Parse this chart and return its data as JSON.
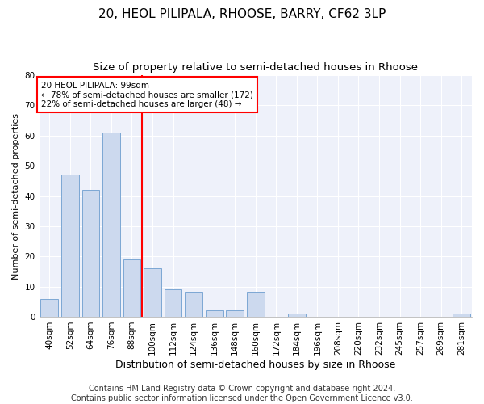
{
  "title1": "20, HEOL PILIPALA, RHOOSE, BARRY, CF62 3LP",
  "title2": "Size of property relative to semi-detached houses in Rhoose",
  "xlabel": "Distribution of semi-detached houses by size in Rhoose",
  "ylabel": "Number of semi-detached properties",
  "categories": [
    "40sqm",
    "52sqm",
    "64sqm",
    "76sqm",
    "88sqm",
    "100sqm",
    "112sqm",
    "124sqm",
    "136sqm",
    "148sqm",
    "160sqm",
    "172sqm",
    "184sqm",
    "196sqm",
    "208sqm",
    "220sqm",
    "232sqm",
    "245sqm",
    "257sqm",
    "269sqm",
    "281sqm"
  ],
  "values": [
    6,
    47,
    42,
    61,
    19,
    16,
    9,
    8,
    2,
    2,
    8,
    0,
    1,
    0,
    0,
    0,
    0,
    0,
    0,
    0,
    1
  ],
  "bar_color": "#ccd9ee",
  "bar_edge_color": "#7ba7d4",
  "vline_color": "red",
  "ylim": [
    0,
    80
  ],
  "yticks": [
    0,
    10,
    20,
    30,
    40,
    50,
    60,
    70,
    80
  ],
  "annotation_title": "20 HEOL PILIPALA: 99sqm",
  "annotation_line1": "← 78% of semi-detached houses are smaller (172)",
  "annotation_line2": "22% of semi-detached houses are larger (48) →",
  "footer1": "Contains HM Land Registry data © Crown copyright and database right 2024.",
  "footer2": "Contains public sector information licensed under the Open Government Licence v3.0.",
  "bg_color": "#ffffff",
  "plot_bg_color": "#eef1fa",
  "grid_color": "#ffffff",
  "title1_fontsize": 11,
  "title2_fontsize": 9.5,
  "xlabel_fontsize": 9,
  "ylabel_fontsize": 8,
  "tick_fontsize": 7.5,
  "footer_fontsize": 7,
  "annot_fontsize": 7.5
}
